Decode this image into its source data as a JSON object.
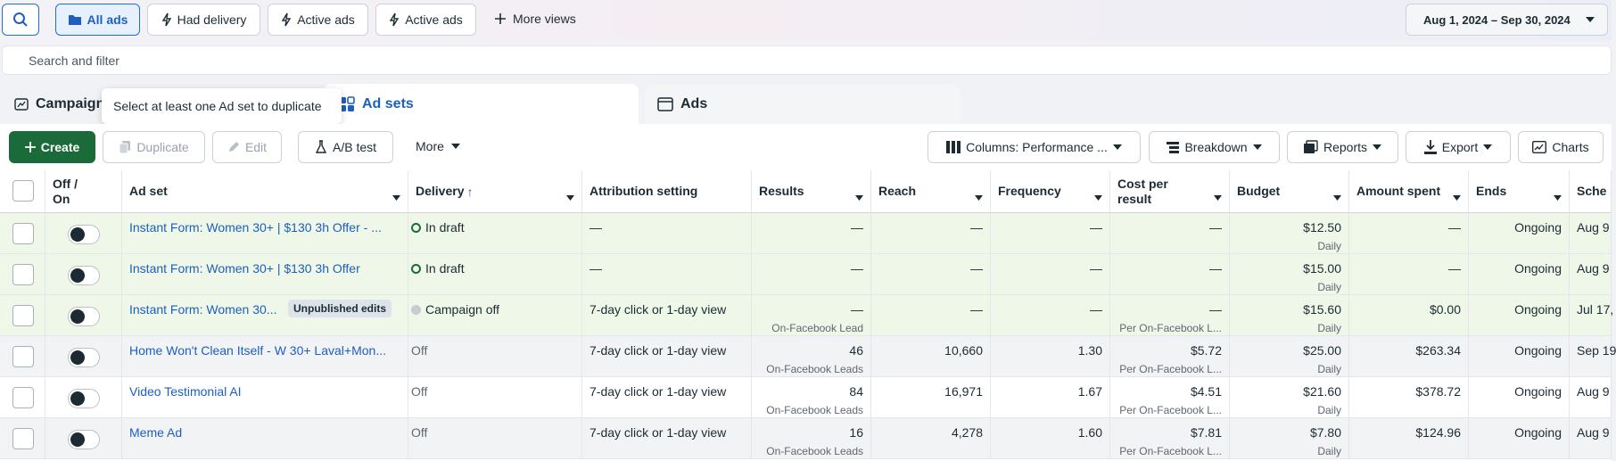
{
  "toolbar_top": {
    "views": [
      "All ads",
      "Had delivery",
      "Active ads",
      "Active ads"
    ],
    "more_views": "More views",
    "date_range": "Aug 1, 2024 – Sep 30, 2024"
  },
  "search": {
    "placeholder": "Search and filter"
  },
  "tabs": {
    "campaigns": "Campaign",
    "ad_sets": "Ad sets",
    "ads": "Ads"
  },
  "tooltip": "Select at least one Ad set to duplicate",
  "actions": {
    "create": "Create",
    "duplicate": "Duplicate",
    "edit": "Edit",
    "ab_test": "A/B test",
    "more": "More",
    "columns": "Columns: Performance ...",
    "breakdown": "Breakdown",
    "reports": "Reports",
    "export": "Export",
    "charts": "Charts"
  },
  "columns": {
    "off_on": "Off / On",
    "ad_set": "Ad set",
    "delivery": "Delivery",
    "attribution": "Attribution setting",
    "results": "Results",
    "reach": "Reach",
    "frequency": "Frequency",
    "cost_per_result": "Cost per result",
    "budget": "Budget",
    "amount_spent": "Amount spent",
    "ends": "Ends",
    "schedule": "Sche"
  },
  "rows": [
    {
      "name": "Instant Form: Women 30+ | $130 3h Offer - ...",
      "badge": "",
      "delivery": "In draft",
      "attribution": "—",
      "results": "—",
      "results_sub": "",
      "reach": "—",
      "frequency": "—",
      "cpr": "—",
      "cpr_sub": "",
      "budget": "$12.50",
      "budget_sub": "Daily",
      "spent": "—",
      "ends": "Ongoing",
      "schedule": "Aug 9"
    },
    {
      "name": "Instant Form: Women 30+ | $130 3h Offer",
      "badge": "",
      "delivery": "In draft",
      "attribution": "—",
      "results": "—",
      "results_sub": "",
      "reach": "—",
      "frequency": "—",
      "cpr": "—",
      "cpr_sub": "",
      "budget": "$15.00",
      "budget_sub": "Daily",
      "spent": "—",
      "ends": "Ongoing",
      "schedule": "Aug 9"
    },
    {
      "name": "Instant Form: Women 30...",
      "badge": "Unpublished edits",
      "delivery": "Campaign off",
      "attribution": "7-day click or 1-day view",
      "results": "—",
      "results_sub": "On-Facebook Lead",
      "reach": "—",
      "frequency": "—",
      "cpr": "—",
      "cpr_sub": "Per On-Facebook L...",
      "budget": "$15.60",
      "budget_sub": "Daily",
      "spent": "$0.00",
      "ends": "Ongoing",
      "schedule": "Jul 17,"
    },
    {
      "name": "Home Won't Clean Itself - W 30+ Laval+Mon...",
      "badge": "",
      "delivery": "Off",
      "attribution": "7-day click or 1-day view",
      "results": "46",
      "results_sub": "On-Facebook Leads",
      "reach": "10,660",
      "frequency": "1.30",
      "cpr": "$5.72",
      "cpr_sub": "Per On-Facebook L...",
      "budget": "$25.00",
      "budget_sub": "Daily",
      "spent": "$263.34",
      "ends": "Ongoing",
      "schedule": "Sep 19"
    },
    {
      "name": "Video Testimonial AI",
      "badge": "",
      "delivery": "Off",
      "attribution": "7-day click or 1-day view",
      "results": "84",
      "results_sub": "On-Facebook Leads",
      "reach": "16,971",
      "frequency": "1.67",
      "cpr": "$4.51",
      "cpr_sub": "Per On-Facebook L...",
      "budget": "$21.60",
      "budget_sub": "Daily",
      "spent": "$378.72",
      "ends": "Ongoing",
      "schedule": "Aug 9"
    },
    {
      "name": "Meme Ad",
      "badge": "",
      "delivery": "Off",
      "attribution": "7-day click or 1-day view",
      "results": "16",
      "results_sub": "On-Facebook Leads",
      "reach": "4,278",
      "frequency": "1.60",
      "cpr": "$7.81",
      "cpr_sub": "Per On-Facebook L...",
      "budget": "$7.80",
      "budget_sub": "Daily",
      "spent": "$124.96",
      "ends": "Ongoing",
      "schedule": "Aug 9"
    }
  ]
}
